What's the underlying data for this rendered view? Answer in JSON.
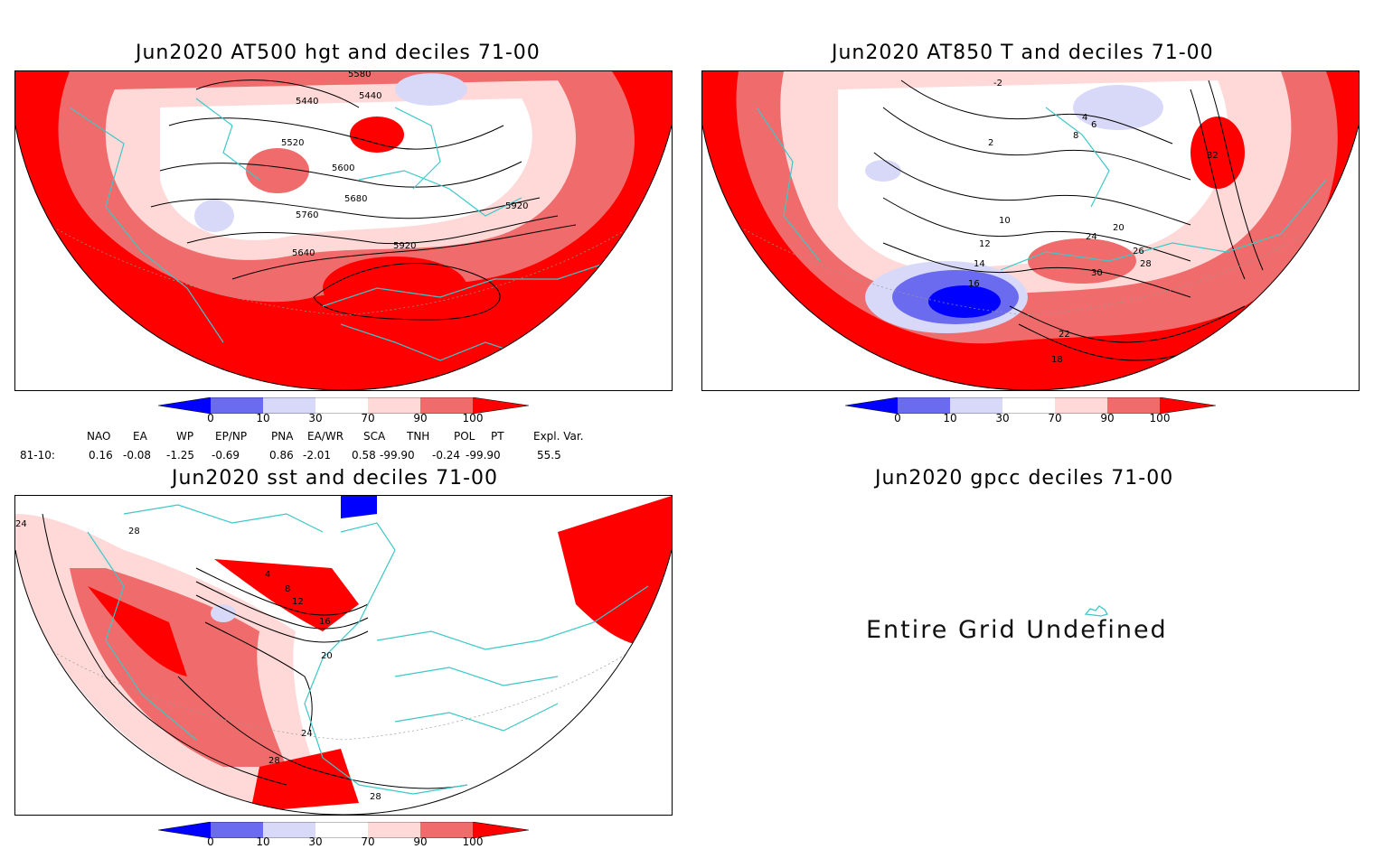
{
  "panels": [
    {
      "title": "Jun2020 AT500 hgt and deciles 71-00",
      "contour_labels": [
        "5580",
        "5440",
        "5440",
        "5520",
        "5600",
        "5680",
        "5760",
        "5640",
        "5920",
        "5920"
      ]
    },
    {
      "title": "Jun2020 AT850 T and deciles 71-00",
      "contour_labels": [
        "-2",
        "2",
        "4",
        "6",
        "8",
        "10",
        "12",
        "14",
        "16",
        "18",
        "20",
        "22",
        "24",
        "26",
        "28",
        "30",
        "32"
      ]
    },
    {
      "title": "Jun2020 sst and deciles 71-00",
      "contour_labels": [
        "24",
        "28",
        "4",
        "8",
        "12",
        "16",
        "20",
        "24",
        "28",
        "28"
      ]
    },
    {
      "title": "Jun2020 gpcc deciles 71-00",
      "message": "Entire Grid Undefined"
    }
  ],
  "colorbar": {
    "labels": [
      "0",
      "10",
      "30",
      "70",
      "90",
      "100"
    ],
    "colors": [
      "#0000ff",
      "#6b6bf0",
      "#d8d8f8",
      "#ffffff",
      "#ffd8d8",
      "#f06b6b",
      "#ff0000"
    ]
  },
  "teleconnections": {
    "period": "81-10:",
    "indices": [
      {
        "name": "NAO",
        "value": "0.16"
      },
      {
        "name": "EA",
        "value": "-0.08"
      },
      {
        "name": "WP",
        "value": "-1.25"
      },
      {
        "name": "EP/NP",
        "value": "-0.69"
      },
      {
        "name": "PNA",
        "value": "0.86"
      },
      {
        "name": "EA/WR",
        "value": "-2.01"
      },
      {
        "name": "SCA",
        "value": "0.58"
      },
      {
        "name": "TNH",
        "value": "-99.90"
      },
      {
        "name": "POL",
        "value": "-0.24"
      },
      {
        "name": "PT",
        "value": "-99.90"
      }
    ],
    "expl_var_label": "Expl. Var.",
    "expl_var_value": "55.5"
  }
}
